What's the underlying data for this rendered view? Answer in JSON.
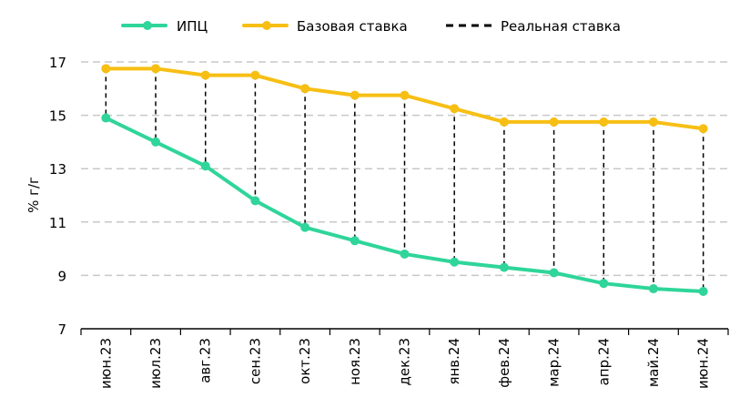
{
  "chart_data": {
    "type": "line",
    "xlabel": "",
    "ylabel": "% г/г",
    "ylim": [
      7,
      17
    ],
    "yticks": [
      7,
      9,
      11,
      13,
      15,
      17
    ],
    "grid": "horizontal dashed",
    "legend_position": "top",
    "categories": [
      "июн.23",
      "июл.23",
      "авг.23",
      "сен.23",
      "окт.23",
      "ноя.23",
      "дек.23",
      "янв.24",
      "фев.24",
      "мар.24",
      "апр.24",
      "май.24",
      "июн.24"
    ],
    "series": [
      {
        "name": "ИПЦ",
        "color": "#2fd59a",
        "values": [
          14.9,
          14.0,
          13.1,
          11.8,
          10.8,
          10.3,
          9.8,
          9.5,
          9.3,
          9.1,
          8.7,
          8.5,
          8.4
        ]
      },
      {
        "name": "Базовая ставка",
        "color": "#f7bf14",
        "values": [
          16.75,
          16.75,
          16.5,
          16.5,
          16.0,
          15.75,
          15.75,
          15.25,
          14.75,
          14.75,
          14.75,
          14.75,
          14.5
        ]
      },
      {
        "name": "Реальная ставка",
        "color": "#000000",
        "style": "dashed"
      }
    ]
  }
}
